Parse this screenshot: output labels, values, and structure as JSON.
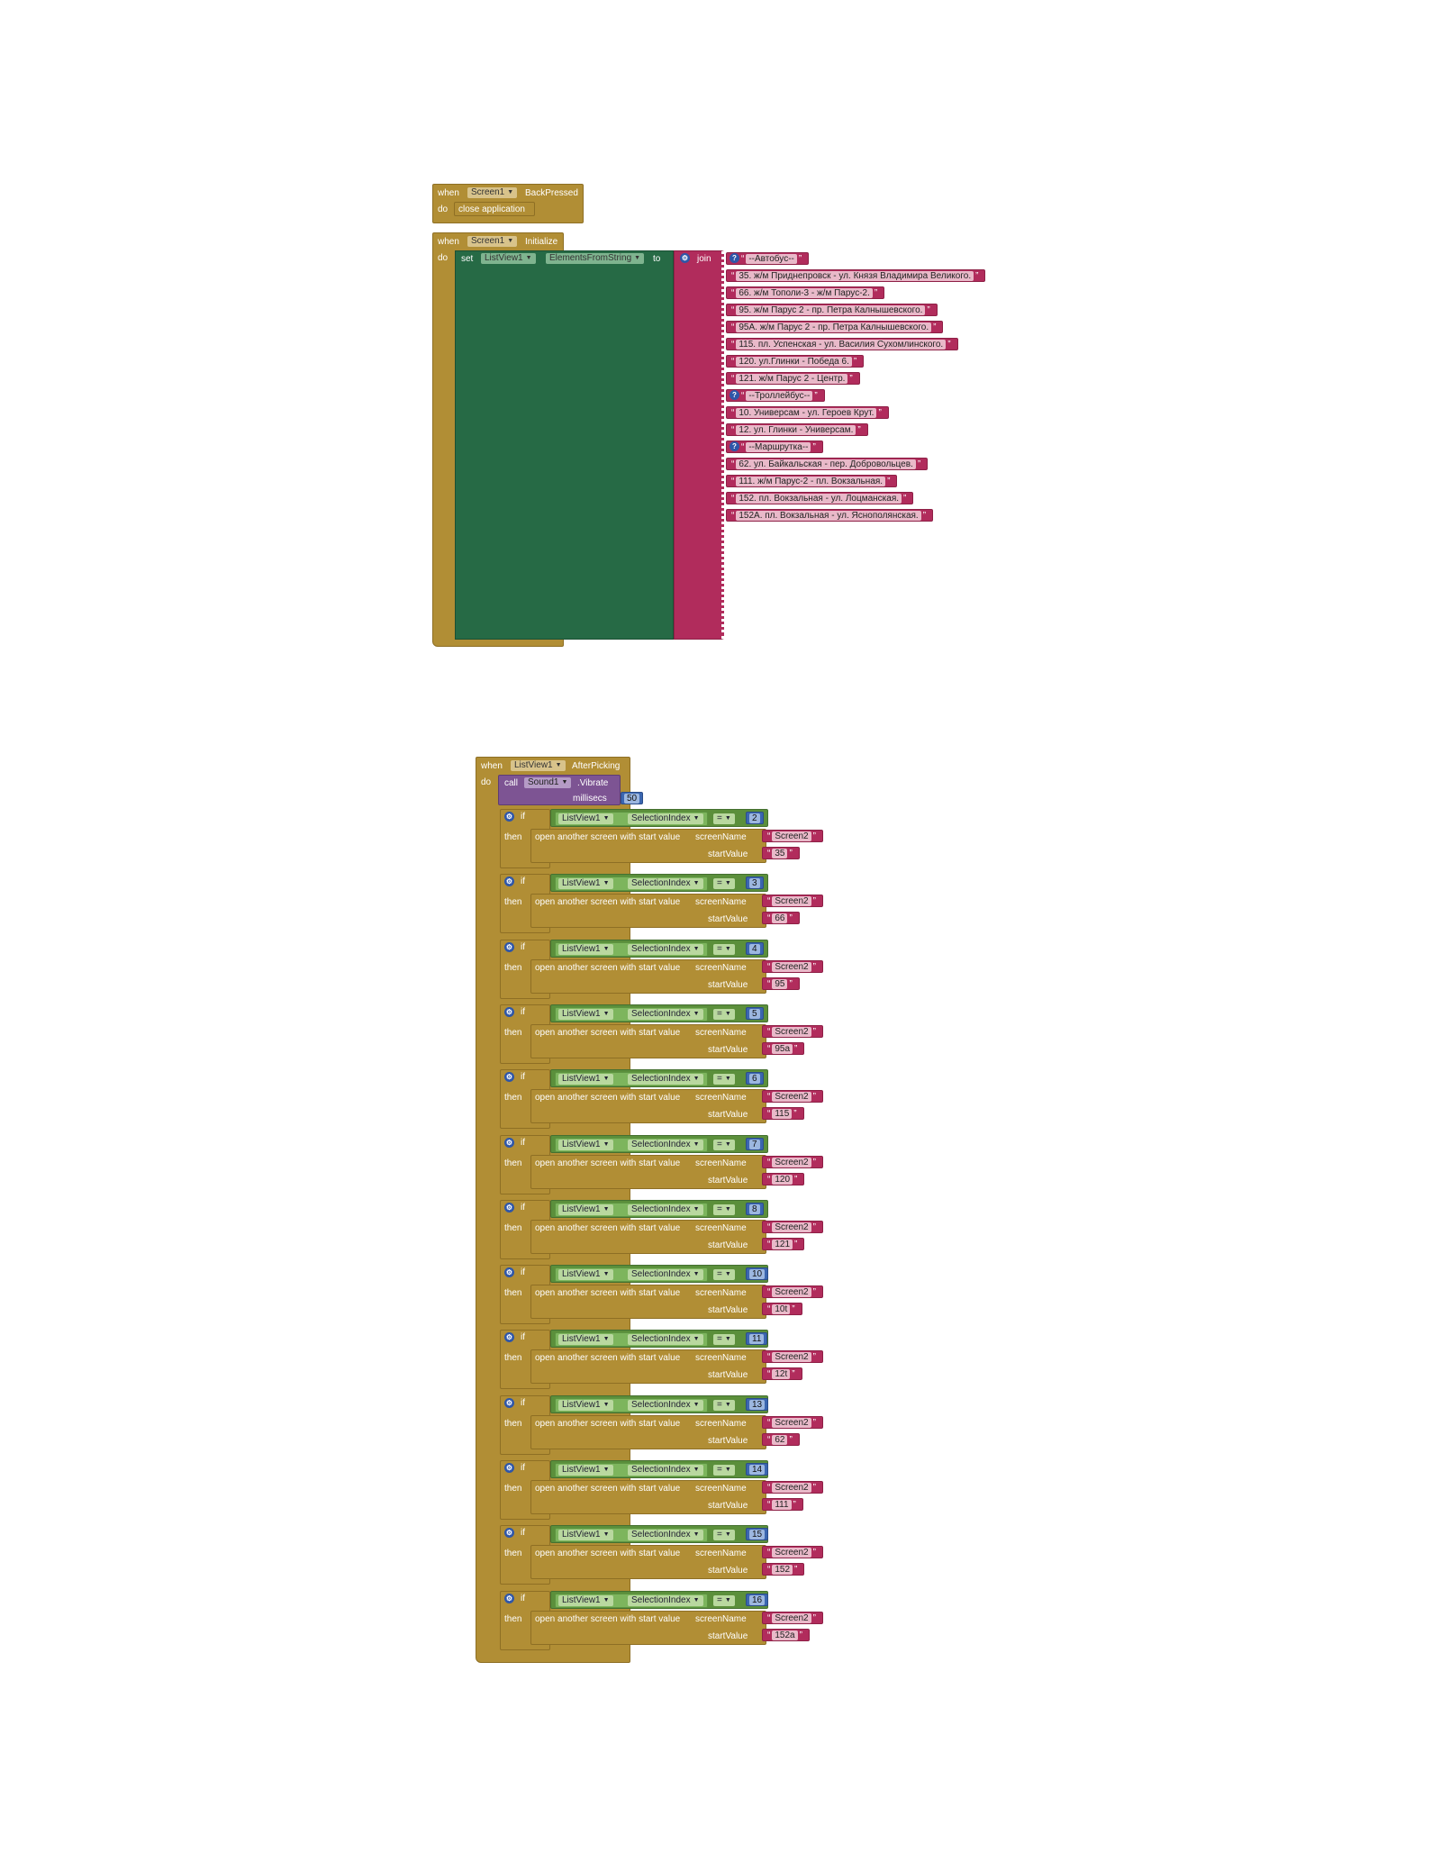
{
  "backpressed": {
    "when": "when",
    "component": "Screen1",
    "event": "BackPressed",
    "do": "do",
    "action": "close application"
  },
  "initialize": {
    "when": "when",
    "component": "Screen1",
    "event": "Initialize",
    "do": "do",
    "set": "set",
    "target": "ListView1",
    "property": "ElementsFromString",
    "to": "to",
    "join": "join",
    "items": [
      {
        "text": "--Автобус--",
        "help": true
      },
      {
        "text": "35. ж/м Приднепровск - ул. Князя Владимира Великого.",
        "help": false
      },
      {
        "text": "66. ж/м Тополи-3 - ж/м Парус-2.",
        "help": false
      },
      {
        "text": "95. ж/м Парус 2 - пр. Петра Калнышевского.",
        "help": false
      },
      {
        "text": "95А. ж/м Парус 2 - пр. Петра Калнышевского.",
        "help": false
      },
      {
        "text": "115. пл. Успенская - ул. Василия Сухомлинского.",
        "help": false
      },
      {
        "text": "120. ул.Глинки - Победа 6.",
        "help": false
      },
      {
        "text": "121. ж/м Парус 2 - Центр.",
        "help": false
      },
      {
        "text": "--Троллейбус--",
        "help": true
      },
      {
        "text": "10. Универсам - ул. Героев Крут.",
        "help": false
      },
      {
        "text": "12. ул. Глинки - Универсам.",
        "help": false
      },
      {
        "text": "--Маршрутка--",
        "help": true
      },
      {
        "text": "62. ул. Байкальская - пер. Добровольцев.",
        "help": false
      },
      {
        "text": "111. ж/м Парус-2 - пл. Вокзальная.",
        "help": false
      },
      {
        "text": "152. пл. Вокзальная - ул. Лоцманская.",
        "help": false
      },
      {
        "text": "152А. пл. Вокзальная - ул. Яснополянская.",
        "help": false
      }
    ]
  },
  "afterpicking": {
    "when": "when",
    "component": "ListView1",
    "event": "AfterPicking",
    "do": "do",
    "call": "call",
    "sound": "Sound1",
    "method": ".Vibrate",
    "millisecs_label": "millisecs",
    "millisecs": "50",
    "if_label": "if",
    "then_label": "then",
    "lv": "ListView1",
    "prop": "SelectionIndex",
    "op": "=",
    "open_label": "open another screen with start value",
    "screen_label": "screenName",
    "start_label": "startValue",
    "branches": [
      {
        "index": "2",
        "screen": "Screen2",
        "value": "35"
      },
      {
        "index": "3",
        "screen": "Screen2",
        "value": "66"
      },
      {
        "index": "4",
        "screen": "Screen2",
        "value": "95"
      },
      {
        "index": "5",
        "screen": "Screen2",
        "value": "95a"
      },
      {
        "index": "6",
        "screen": "Screen2",
        "value": "115"
      },
      {
        "index": "7",
        "screen": "Screen2",
        "value": "120"
      },
      {
        "index": "8",
        "screen": "Screen2",
        "value": "121"
      },
      {
        "index": "10",
        "screen": "Screen2",
        "value": "10t"
      },
      {
        "index": "11",
        "screen": "Screen2",
        "value": "12t"
      },
      {
        "index": "13",
        "screen": "Screen2",
        "value": "62"
      },
      {
        "index": "14",
        "screen": "Screen2",
        "value": "111"
      },
      {
        "index": "15",
        "screen": "Screen2",
        "value": "152"
      },
      {
        "index": "16",
        "screen": "Screen2",
        "value": "152a"
      }
    ]
  }
}
